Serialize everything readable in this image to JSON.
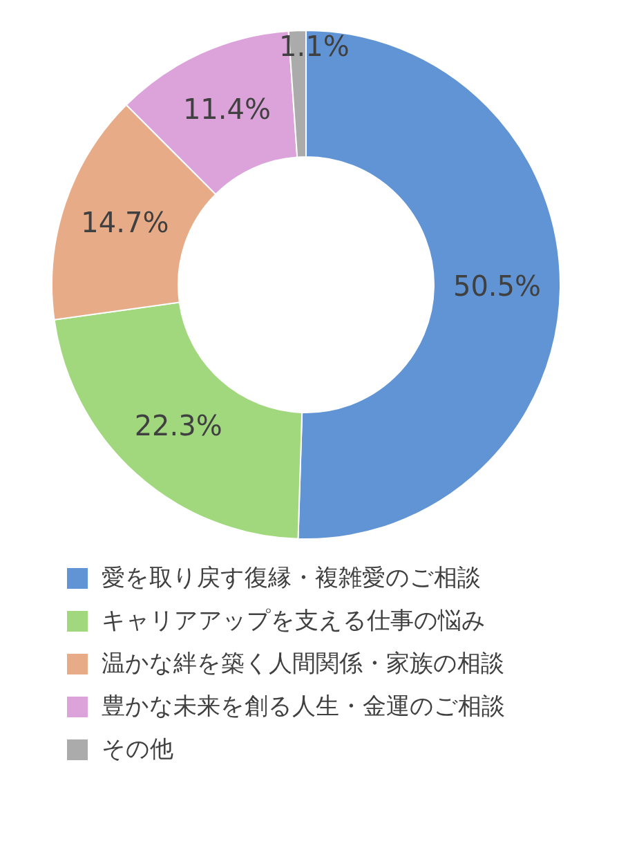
{
  "chart_data": {
    "type": "donut",
    "categories": [
      "愛を取り戻す復縁・複雑愛のご相談",
      "キャリアアップを支える仕事の悩み",
      "温かな絆を築く人間関係・家族の相談",
      "豊かな未来を創る人生・金運のご相談",
      "その他"
    ],
    "values": [
      50.5,
      22.3,
      14.7,
      11.4,
      1.1
    ],
    "colors": [
      "#6094d4",
      "#a1d87e",
      "#e8ab88",
      "#dba3d9",
      "#ababab"
    ],
    "value_labels": [
      "50.5%",
      "22.3%",
      "14.7%",
      "11.4%",
      "1.1%"
    ],
    "legend": "bottom"
  }
}
